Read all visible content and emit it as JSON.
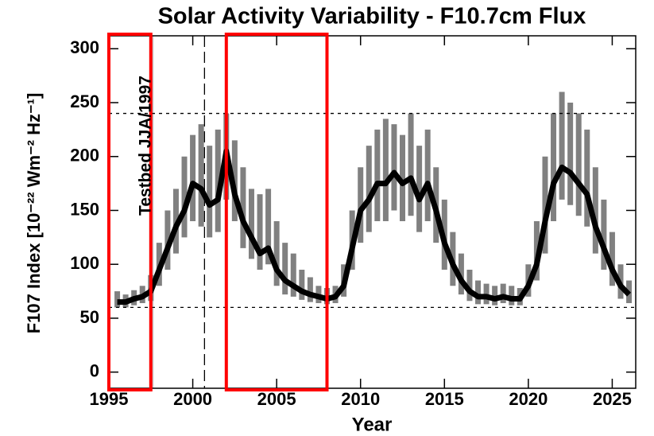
{
  "chart_data": {
    "type": "line",
    "title": "Solar Activity Variability - F10.7cm Flux",
    "x_label": "Year",
    "y_label": "F107 Index [10⁻²² Wm⁻² Hz⁻¹]",
    "annotation": "Testbed JJA/1997",
    "xlim": [
      1995,
      2026.4
    ],
    "xticks": [
      1995,
      2000,
      2005,
      2010,
      2015,
      2020,
      2025
    ],
    "ylim": [
      -15,
      312
    ],
    "yticks": [
      0,
      50,
      100,
      150,
      200,
      250,
      300
    ],
    "hlines": [
      60,
      240
    ],
    "vlines": [
      2000.7
    ],
    "highlight_boxes": [
      [
        1995,
        1997.5
      ],
      [
        2002,
        2008
      ]
    ],
    "highlight_color": "#ff0000",
    "shaded_span": [
      1997.42,
      1997.67
    ],
    "x": [
      1995.5,
      1996,
      1996.5,
      1997,
      1997.5,
      1998,
      1998.5,
      1999,
      1999.5,
      2000,
      2000.5,
      2001,
      2001.5,
      2002,
      2002.5,
      2003,
      2003.5,
      2004,
      2004.5,
      2005,
      2005.5,
      2006,
      2006.5,
      2007,
      2007.5,
      2008,
      2008.5,
      2009,
      2009.5,
      2010,
      2010.5,
      2011,
      2011.5,
      2012,
      2012.5,
      2013,
      2013.5,
      2014,
      2014.5,
      2015,
      2015.5,
      2016,
      2016.5,
      2017,
      2017.5,
      2018,
      2018.5,
      2019,
      2019.5,
      2020,
      2020.5,
      2021,
      2021.5,
      2022,
      2022.5,
      2023,
      2023.5,
      2024,
      2024.5,
      2025,
      2025.5,
      2026
    ],
    "values": [
      65,
      65,
      68,
      70,
      75,
      95,
      115,
      135,
      150,
      175,
      170,
      155,
      160,
      205,
      165,
      140,
      125,
      110,
      115,
      95,
      85,
      80,
      75,
      72,
      70,
      68,
      70,
      80,
      115,
      150,
      160,
      175,
      175,
      185,
      175,
      180,
      160,
      175,
      150,
      120,
      100,
      85,
      75,
      70,
      70,
      68,
      70,
      68,
      68,
      80,
      100,
      140,
      175,
      190,
      185,
      175,
      165,
      135,
      115,
      95,
      80,
      72
    ],
    "color": "#000000",
    "high": [
      75,
      72,
      76,
      80,
      90,
      120,
      150,
      170,
      200,
      220,
      230,
      210,
      225,
      240,
      215,
      190,
      170,
      165,
      170,
      140,
      120,
      110,
      95,
      88,
      80,
      78,
      80,
      100,
      150,
      190,
      210,
      225,
      235,
      230,
      220,
      240,
      210,
      225,
      190,
      160,
      130,
      110,
      95,
      85,
      82,
      80,
      82,
      80,
      78,
      100,
      140,
      200,
      240,
      260,
      250,
      240,
      225,
      190,
      160,
      130,
      100,
      85
    ],
    "low": [
      60,
      60,
      62,
      64,
      66,
      80,
      95,
      110,
      125,
      140,
      135,
      125,
      130,
      160,
      140,
      115,
      105,
      95,
      100,
      80,
      72,
      70,
      67,
      65,
      64,
      63,
      64,
      70,
      95,
      120,
      130,
      140,
      140,
      150,
      140,
      145,
      130,
      140,
      120,
      95,
      80,
      72,
      66,
      63,
      63,
      62,
      64,
      62,
      62,
      70,
      85,
      110,
      140,
      160,
      155,
      145,
      135,
      110,
      95,
      80,
      68,
      64
    ],
    "range_color": "#808080"
  }
}
